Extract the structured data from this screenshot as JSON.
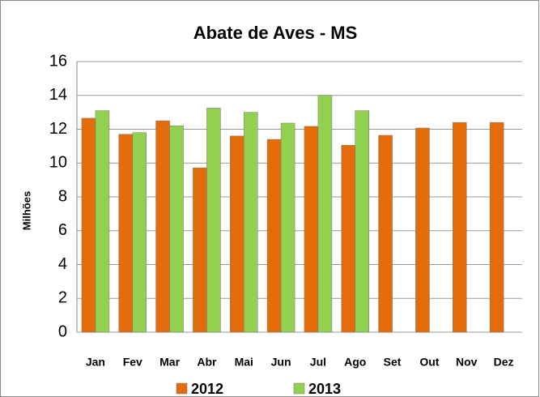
{
  "chart_data": {
    "type": "bar",
    "title": "Abate de Aves - MS",
    "y_label": "Milhões",
    "categories": [
      "Jan",
      "Fev",
      "Mar",
      "Abr",
      "Mai",
      "Jun",
      "Jul",
      "Ago",
      "Set",
      "Out",
      "Nov",
      "Dez"
    ],
    "series": [
      {
        "name": "2012",
        "color": "#e46c0a",
        "values": [
          12.65,
          11.7,
          12.5,
          9.72,
          11.6,
          11.4,
          12.17,
          11.05,
          11.64,
          12.07,
          12.4,
          12.4
        ]
      },
      {
        "name": "2013",
        "color": "#92d050",
        "values": [
          13.1,
          11.8,
          12.2,
          13.25,
          13.0,
          12.36,
          14.0,
          13.1,
          null,
          null,
          null,
          null
        ]
      }
    ],
    "ylim": [
      0,
      16
    ],
    "yticks": [
      0,
      2,
      4,
      6,
      8,
      10,
      12,
      14,
      16
    ],
    "grid": true,
    "legend": "bottom"
  }
}
